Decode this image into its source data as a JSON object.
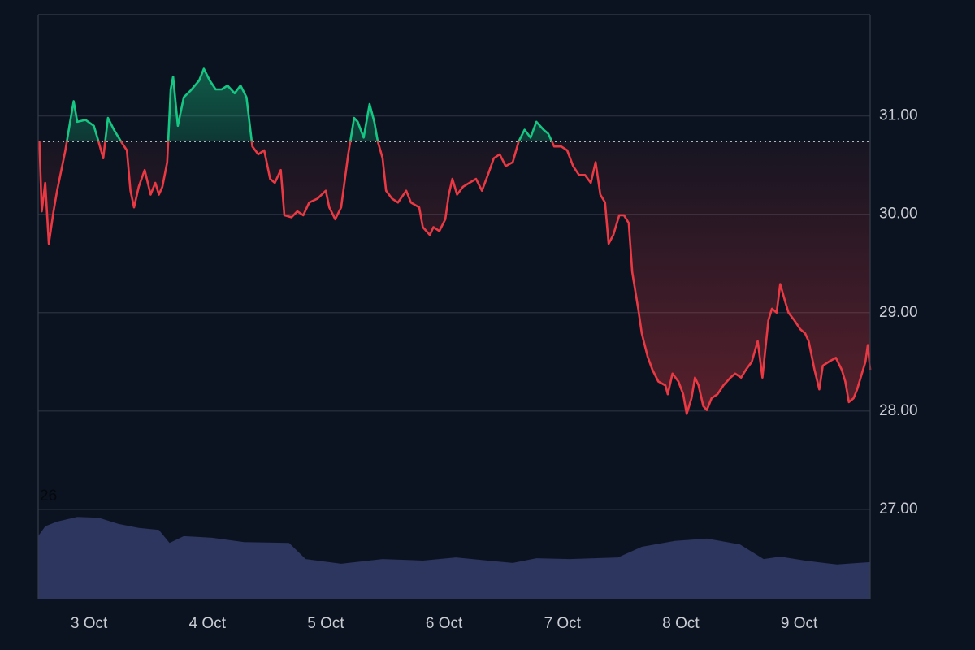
{
  "chart_data": [
    {
      "type": "baseline",
      "x": [
        -0.42,
        -0.4,
        -0.37,
        -0.34,
        -0.3,
        -0.27,
        -0.2,
        -0.16,
        -0.13,
        -0.1,
        -0.03,
        0.04,
        0.08,
        0.12,
        0.16,
        0.21,
        0.27,
        0.32,
        0.35,
        0.38,
        0.42,
        0.47,
        0.52,
        0.56,
        0.59,
        0.62,
        0.66,
        0.69,
        0.71,
        0.75,
        0.8,
        0.86,
        0.93,
        0.97,
        1.02,
        1.07,
        1.12,
        1.17,
        1.23,
        1.28,
        1.33,
        1.38,
        1.43,
        1.48,
        1.53,
        1.57,
        1.62,
        1.65,
        1.71,
        1.76,
        1.81,
        1.86,
        1.93,
        2.0,
        2.03,
        2.08,
        2.13,
        2.19,
        2.24,
        2.27,
        2.32,
        2.37,
        2.41,
        2.44,
        2.48,
        2.51,
        2.56,
        2.61,
        2.68,
        2.72,
        2.79,
        2.82,
        2.88,
        2.91,
        2.96,
        3.01,
        3.04,
        3.07,
        3.11,
        3.16,
        3.27,
        3.32,
        3.37,
        3.42,
        3.47,
        3.52,
        3.58,
        3.63,
        3.68,
        3.73,
        3.78,
        3.84,
        3.88,
        3.93,
        3.99,
        4.04,
        4.09,
        4.14,
        4.19,
        4.24,
        4.28,
        4.32,
        4.36,
        4.39,
        4.43,
        4.48,
        4.52,
        4.56,
        4.59,
        4.64,
        4.67,
        4.72,
        4.76,
        4.81,
        4.87,
        4.89,
        4.93,
        4.98,
        5.02,
        5.05,
        5.09,
        5.12,
        5.15,
        5.19,
        5.22,
        5.26,
        5.31,
        5.36,
        5.42,
        5.46,
        5.51,
        5.55,
        5.6,
        5.65,
        5.69,
        5.74,
        5.77,
        5.81,
        5.84,
        5.88,
        5.91,
        5.96,
        6.01,
        6.05,
        6.08,
        6.13,
        6.17,
        6.2,
        6.25,
        6.31,
        6.36,
        6.39,
        6.42,
        6.46,
        6.49,
        6.53,
        6.56,
        6.58,
        6.6
      ],
      "values": [
        30.74,
        30.03,
        30.32,
        29.7,
        30.03,
        30.24,
        30.65,
        30.94,
        31.15,
        30.94,
        30.96,
        30.9,
        30.74,
        30.57,
        30.98,
        30.86,
        30.74,
        30.65,
        30.24,
        30.07,
        30.28,
        30.45,
        30.2,
        30.32,
        30.2,
        30.28,
        30.53,
        31.27,
        31.4,
        30.9,
        31.19,
        31.26,
        31.36,
        31.48,
        31.36,
        31.27,
        31.27,
        31.31,
        31.23,
        31.31,
        31.19,
        30.69,
        30.61,
        30.65,
        30.36,
        30.32,
        30.45,
        29.99,
        29.97,
        30.03,
        29.99,
        30.12,
        30.16,
        30.24,
        30.07,
        29.95,
        30.07,
        30.61,
        30.98,
        30.94,
        30.78,
        31.12,
        30.94,
        30.74,
        30.57,
        30.24,
        30.16,
        30.12,
        30.24,
        30.12,
        30.07,
        29.87,
        29.79,
        29.87,
        29.83,
        29.95,
        30.2,
        30.36,
        30.2,
        30.28,
        30.36,
        30.24,
        30.4,
        30.57,
        30.61,
        30.49,
        30.53,
        30.74,
        30.86,
        30.78,
        30.94,
        30.86,
        30.82,
        30.69,
        30.69,
        30.65,
        30.49,
        30.4,
        30.4,
        30.32,
        30.53,
        30.2,
        30.12,
        29.7,
        29.79,
        29.99,
        29.99,
        29.91,
        29.41,
        29.04,
        28.79,
        28.55,
        28.42,
        28.3,
        28.26,
        28.17,
        28.38,
        28.3,
        28.17,
        27.97,
        28.13,
        28.34,
        28.26,
        28.05,
        28.01,
        28.13,
        28.17,
        28.26,
        28.34,
        28.38,
        28.34,
        28.42,
        28.5,
        28.71,
        28.34,
        28.92,
        29.04,
        29.0,
        29.29,
        29.12,
        29.0,
        28.92,
        28.83,
        28.79,
        28.71,
        28.42,
        28.22,
        28.46,
        28.5,
        28.54,
        28.42,
        28.3,
        28.09,
        28.13,
        28.22,
        28.38,
        28.5,
        28.67,
        28.42
      ],
      "baseline": 30.74,
      "up_color": "#16c784",
      "down_color": "#ea3943",
      "xlim": [
        -0.43,
        6.6
      ],
      "xticks": [
        {
          "value": 0,
          "label": "3 Oct"
        },
        {
          "value": 1,
          "label": "4 Oct"
        },
        {
          "value": 2,
          "label": "5 Oct"
        },
        {
          "value": 3,
          "label": "6 Oct"
        },
        {
          "value": 4,
          "label": "7 Oct"
        },
        {
          "value": 5,
          "label": "8 Oct"
        },
        {
          "value": 6,
          "label": "9 Oct"
        }
      ],
      "ylim": [
        26.09,
        32.03
      ],
      "yticks": [
        {
          "value": 27,
          "label": "27.00"
        },
        {
          "value": 28,
          "label": "28.00"
        },
        {
          "value": 29,
          "label": "29.00"
        },
        {
          "value": 30,
          "label": "30.00"
        },
        {
          "value": 31,
          "label": "31.00"
        }
      ],
      "grid": true
    },
    {
      "type": "area",
      "x": [
        -0.43,
        -0.37,
        -0.27,
        -0.1,
        0.08,
        0.25,
        0.42,
        0.59,
        0.68,
        0.8,
        1.04,
        1.31,
        1.69,
        1.83,
        2.13,
        2.48,
        2.82,
        3.1,
        3.37,
        3.58,
        3.78,
        4.06,
        4.47,
        4.67,
        4.95,
        5.22,
        5.5,
        5.7,
        5.84,
        6.05,
        6.32,
        6.6
      ],
      "values": [
        15.9,
        18.4,
        19.6,
        20.8,
        20.6,
        19.0,
        18.0,
        17.5,
        14.2,
        15.9,
        15.5,
        14.4,
        14.2,
        10.1,
        8.9,
        10.1,
        9.7,
        10.5,
        9.7,
        9.1,
        10.3,
        10.1,
        10.5,
        13.2,
        14.7,
        15.3,
        13.8,
        10.1,
        10.7,
        9.7,
        8.7,
        9.3
      ],
      "color": "#2c365f",
      "xlim": [
        -0.43,
        6.6
      ],
      "ylim": [
        0,
        26
      ],
      "yticks": [
        26
      ]
    }
  ]
}
